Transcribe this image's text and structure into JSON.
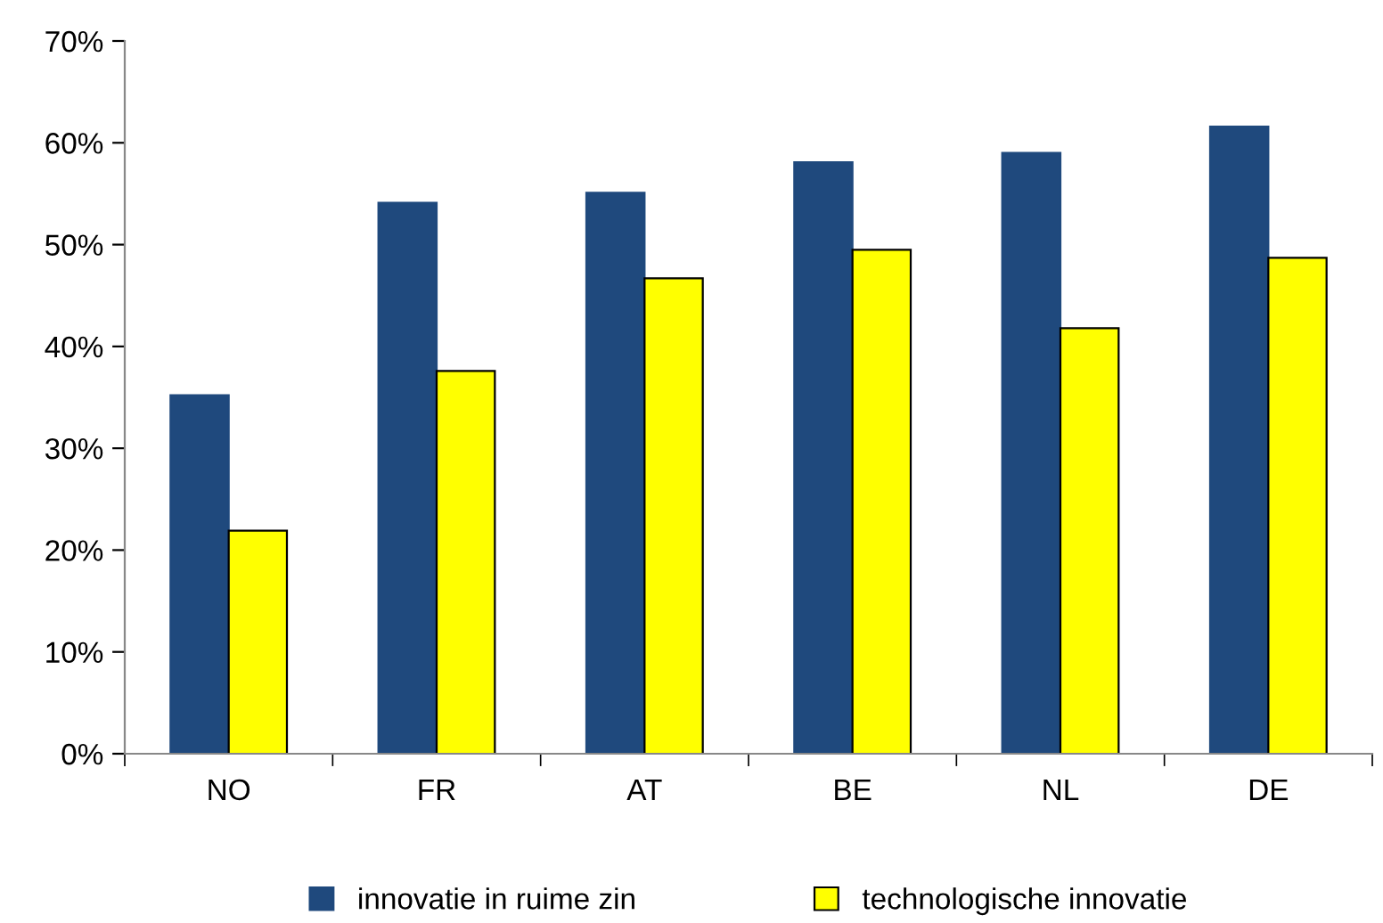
{
  "chart_data": {
    "type": "bar",
    "categories": [
      "NO",
      "FR",
      "AT",
      "BE",
      "NL",
      "DE"
    ],
    "series": [
      {
        "name": "innovatie in ruime zin",
        "color": "#1f497d",
        "values": [
          35.2,
          54.1,
          55.1,
          58.1,
          59.0,
          61.6
        ]
      },
      {
        "name": "technologische innovatie",
        "color": "#ffff00",
        "values": [
          21.9,
          37.6,
          46.7,
          49.5,
          41.8,
          48.7
        ]
      }
    ],
    "ylim": [
      0,
      70
    ],
    "yticks": [
      {
        "value": 0,
        "label": "0%"
      },
      {
        "value": 10,
        "label": "10%"
      },
      {
        "value": 20,
        "label": "20%"
      },
      {
        "value": 30,
        "label": "30%"
      },
      {
        "value": 40,
        "label": "40%"
      },
      {
        "value": 50,
        "label": "50%"
      },
      {
        "value": 60,
        "label": "60%"
      },
      {
        "value": 70,
        "label": "70%"
      }
    ],
    "grid": false,
    "legend": "bottom"
  }
}
